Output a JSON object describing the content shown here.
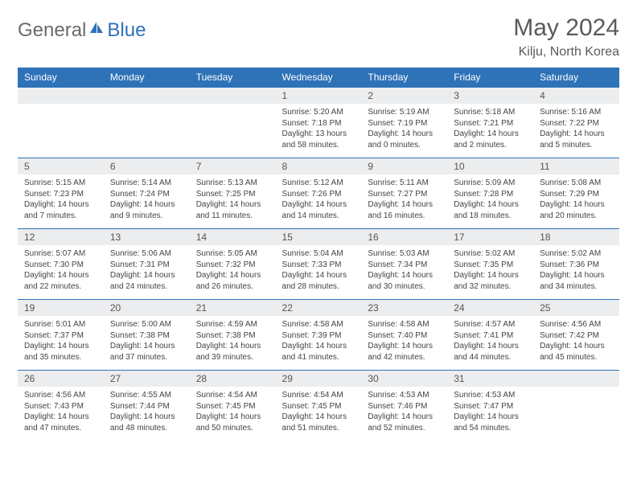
{
  "brand": {
    "part1": "General",
    "part2": "Blue"
  },
  "title": "May 2024",
  "location": "Kilju, North Korea",
  "colors": {
    "accent": "#2e72b8",
    "header_bg": "#2e72b8",
    "daynum_bg": "#ecedee",
    "text": "#4a4a4a"
  },
  "weekdays": [
    "Sunday",
    "Monday",
    "Tuesday",
    "Wednesday",
    "Thursday",
    "Friday",
    "Saturday"
  ],
  "layout": {
    "weeks": 5,
    "first_weekday_index": 3
  },
  "days": [
    {
      "n": 1,
      "sunrise": "5:20 AM",
      "sunset": "7:18 PM",
      "daylight": "13 hours and 58 minutes."
    },
    {
      "n": 2,
      "sunrise": "5:19 AM",
      "sunset": "7:19 PM",
      "daylight": "14 hours and 0 minutes."
    },
    {
      "n": 3,
      "sunrise": "5:18 AM",
      "sunset": "7:21 PM",
      "daylight": "14 hours and 2 minutes."
    },
    {
      "n": 4,
      "sunrise": "5:16 AM",
      "sunset": "7:22 PM",
      "daylight": "14 hours and 5 minutes."
    },
    {
      "n": 5,
      "sunrise": "5:15 AM",
      "sunset": "7:23 PM",
      "daylight": "14 hours and 7 minutes."
    },
    {
      "n": 6,
      "sunrise": "5:14 AM",
      "sunset": "7:24 PM",
      "daylight": "14 hours and 9 minutes."
    },
    {
      "n": 7,
      "sunrise": "5:13 AM",
      "sunset": "7:25 PM",
      "daylight": "14 hours and 11 minutes."
    },
    {
      "n": 8,
      "sunrise": "5:12 AM",
      "sunset": "7:26 PM",
      "daylight": "14 hours and 14 minutes."
    },
    {
      "n": 9,
      "sunrise": "5:11 AM",
      "sunset": "7:27 PM",
      "daylight": "14 hours and 16 minutes."
    },
    {
      "n": 10,
      "sunrise": "5:09 AM",
      "sunset": "7:28 PM",
      "daylight": "14 hours and 18 minutes."
    },
    {
      "n": 11,
      "sunrise": "5:08 AM",
      "sunset": "7:29 PM",
      "daylight": "14 hours and 20 minutes."
    },
    {
      "n": 12,
      "sunrise": "5:07 AM",
      "sunset": "7:30 PM",
      "daylight": "14 hours and 22 minutes."
    },
    {
      "n": 13,
      "sunrise": "5:06 AM",
      "sunset": "7:31 PM",
      "daylight": "14 hours and 24 minutes."
    },
    {
      "n": 14,
      "sunrise": "5:05 AM",
      "sunset": "7:32 PM",
      "daylight": "14 hours and 26 minutes."
    },
    {
      "n": 15,
      "sunrise": "5:04 AM",
      "sunset": "7:33 PM",
      "daylight": "14 hours and 28 minutes."
    },
    {
      "n": 16,
      "sunrise": "5:03 AM",
      "sunset": "7:34 PM",
      "daylight": "14 hours and 30 minutes."
    },
    {
      "n": 17,
      "sunrise": "5:02 AM",
      "sunset": "7:35 PM",
      "daylight": "14 hours and 32 minutes."
    },
    {
      "n": 18,
      "sunrise": "5:02 AM",
      "sunset": "7:36 PM",
      "daylight": "14 hours and 34 minutes."
    },
    {
      "n": 19,
      "sunrise": "5:01 AM",
      "sunset": "7:37 PM",
      "daylight": "14 hours and 35 minutes."
    },
    {
      "n": 20,
      "sunrise": "5:00 AM",
      "sunset": "7:38 PM",
      "daylight": "14 hours and 37 minutes."
    },
    {
      "n": 21,
      "sunrise": "4:59 AM",
      "sunset": "7:38 PM",
      "daylight": "14 hours and 39 minutes."
    },
    {
      "n": 22,
      "sunrise": "4:58 AM",
      "sunset": "7:39 PM",
      "daylight": "14 hours and 41 minutes."
    },
    {
      "n": 23,
      "sunrise": "4:58 AM",
      "sunset": "7:40 PM",
      "daylight": "14 hours and 42 minutes."
    },
    {
      "n": 24,
      "sunrise": "4:57 AM",
      "sunset": "7:41 PM",
      "daylight": "14 hours and 44 minutes."
    },
    {
      "n": 25,
      "sunrise": "4:56 AM",
      "sunset": "7:42 PM",
      "daylight": "14 hours and 45 minutes."
    },
    {
      "n": 26,
      "sunrise": "4:56 AM",
      "sunset": "7:43 PM",
      "daylight": "14 hours and 47 minutes."
    },
    {
      "n": 27,
      "sunrise": "4:55 AM",
      "sunset": "7:44 PM",
      "daylight": "14 hours and 48 minutes."
    },
    {
      "n": 28,
      "sunrise": "4:54 AM",
      "sunset": "7:45 PM",
      "daylight": "14 hours and 50 minutes."
    },
    {
      "n": 29,
      "sunrise": "4:54 AM",
      "sunset": "7:45 PM",
      "daylight": "14 hours and 51 minutes."
    },
    {
      "n": 30,
      "sunrise": "4:53 AM",
      "sunset": "7:46 PM",
      "daylight": "14 hours and 52 minutes."
    },
    {
      "n": 31,
      "sunrise": "4:53 AM",
      "sunset": "7:47 PM",
      "daylight": "14 hours and 54 minutes."
    }
  ],
  "labels": {
    "sunrise": "Sunrise:",
    "sunset": "Sunset:",
    "daylight": "Daylight:"
  }
}
